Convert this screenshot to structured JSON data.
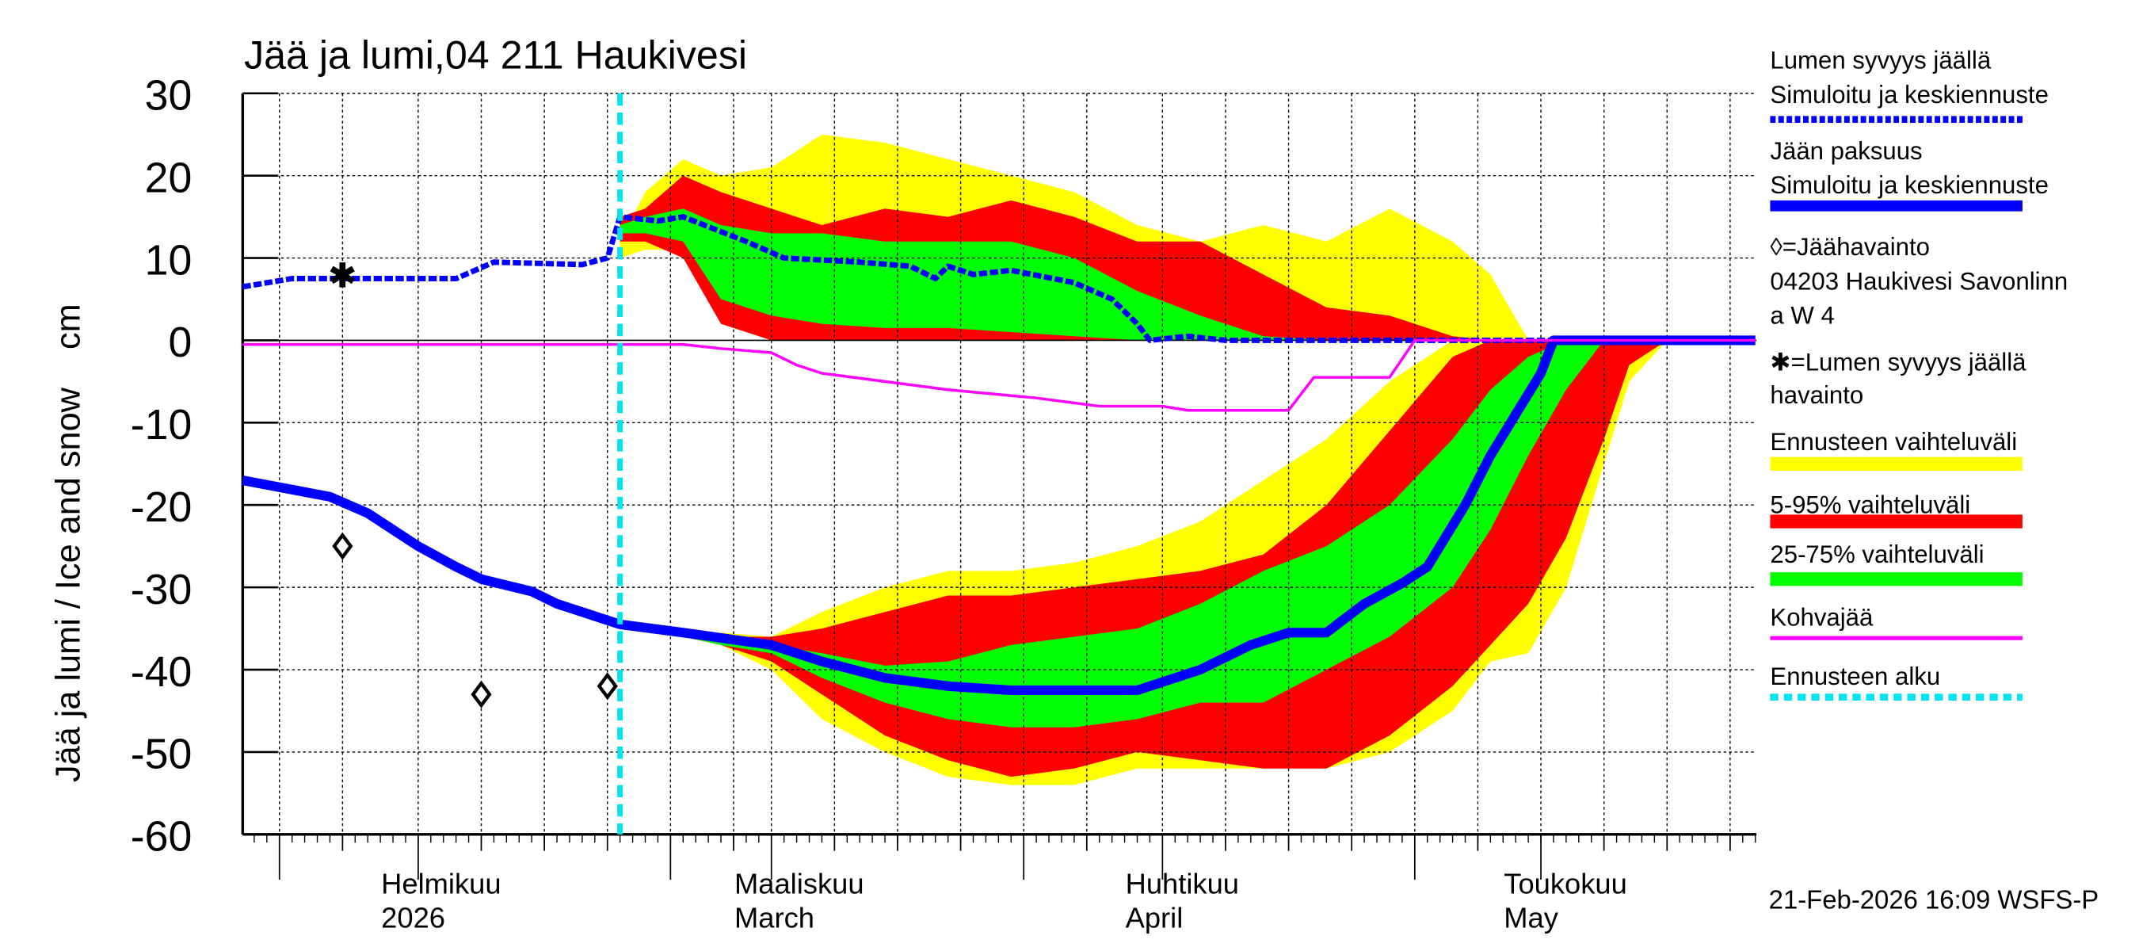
{
  "chart_data": {
    "type": "area",
    "title": "Jää ja lumi,04 211 Haukivesi",
    "ylabel": "Jää ja lumi / Ice and snow    cm",
    "ylim": [
      -60,
      30
    ],
    "yticks": [
      30,
      20,
      10,
      0,
      -10,
      -20,
      -30,
      -40,
      -50,
      -60
    ],
    "xlim": [
      "2026-01-18",
      "2026-05-18"
    ],
    "grid": true,
    "legend_placement": "right",
    "x_month_labels": [
      {
        "date": "2026-02-01",
        "fi": "Helmikuu",
        "en": "2026"
      },
      {
        "date": "2026-03-01",
        "fi": "Maaliskuu",
        "en": "March"
      },
      {
        "date": "2026-04-01",
        "fi": "Huhtikuu",
        "en": "April"
      },
      {
        "date": "2026-05-01",
        "fi": "Toukokuu",
        "en": "May"
      }
    ],
    "forecast_start": "2026-02-17",
    "band_dates": [
      "2026-02-17",
      "2026-02-19",
      "2026-02-22",
      "2026-02-25",
      "2026-03-01",
      "2026-03-05",
      "2026-03-10",
      "2026-03-15",
      "2026-03-20",
      "2026-03-25",
      "2026-03-30",
      "2026-04-04",
      "2026-04-09",
      "2026-04-14",
      "2026-04-19",
      "2026-04-24",
      "2026-04-27",
      "2026-04-30",
      "2026-05-03",
      "2026-05-06",
      "2026-05-08",
      "2026-05-11"
    ],
    "snow_bands": {
      "yellow_max": [
        12,
        18,
        22,
        20,
        21,
        25,
        24,
        22,
        20,
        18,
        14,
        12,
        14,
        12,
        16,
        12,
        8,
        0,
        0,
        0,
        0,
        0
      ],
      "yellow_min": [
        10,
        11,
        11,
        2,
        0,
        0,
        0,
        0,
        0,
        0,
        0,
        0,
        0,
        0,
        0,
        0,
        0,
        0,
        0,
        0,
        0,
        0
      ],
      "red_max": [
        15,
        16,
        20,
        18,
        16,
        14,
        16,
        15,
        17,
        15,
        12,
        12,
        8,
        4,
        3,
        0.5,
        0,
        0,
        0,
        0,
        0,
        0
      ],
      "red_min": [
        12,
        12,
        10,
        2,
        0,
        0,
        0,
        0,
        0,
        0,
        0,
        0,
        0,
        0,
        0,
        0,
        0,
        0,
        0,
        0,
        0,
        0
      ],
      "green_max": [
        14,
        15,
        16,
        14,
        13,
        13,
        12,
        12,
        12,
        10,
        6,
        3,
        0.5,
        0,
        0,
        0,
        0,
        0,
        0,
        0,
        0,
        0
      ],
      "green_min": [
        13,
        13,
        12,
        5,
        3,
        2,
        1.5,
        1.5,
        1,
        0.5,
        0,
        0,
        0,
        0,
        0,
        0,
        0,
        0,
        0,
        0,
        0,
        0
      ]
    },
    "ice_bands": {
      "yellow_upper": [
        -34.5,
        -35,
        -35.5,
        -35.5,
        -36,
        -33,
        -30,
        -28,
        -28,
        -27,
        -25,
        -22,
        -17,
        -12,
        -5,
        0,
        0,
        0,
        0,
        0,
        0,
        0
      ],
      "yellow_lower": [
        -34.5,
        -35,
        -36,
        -37,
        -40,
        -46,
        -50,
        -53,
        -54,
        -54,
        -52,
        -52,
        -52,
        -52,
        -50,
        -45,
        -39,
        -38,
        -30,
        -15,
        -5,
        0
      ],
      "red_upper": [
        -34.5,
        -35,
        -35.5,
        -36,
        -36,
        -35,
        -33,
        -31,
        -31,
        -30,
        -29,
        -28,
        -26,
        -20,
        -11,
        -2,
        0,
        0,
        0,
        0,
        0,
        0
      ],
      "red_lower": [
        -34.5,
        -35,
        -36,
        -37,
        -39,
        -43,
        -48,
        -51,
        -53,
        -52,
        -50,
        -51,
        -52,
        -52,
        -48,
        -42,
        -37,
        -32,
        -24,
        -12,
        -3,
        0
      ],
      "green_upper": [
        -34.5,
        -35,
        -35.5,
        -36,
        -37,
        -38,
        -39.5,
        -39,
        -37,
        -36,
        -35,
        -32,
        -28,
        -25,
        -20,
        -12,
        -6,
        -2,
        0,
        0,
        0,
        0
      ],
      "green_lower": [
        -34.5,
        -35,
        -36,
        -37,
        -38,
        -41,
        -44,
        -46,
        -47,
        -47,
        -46,
        -44,
        -44,
        -40,
        -36,
        -30,
        -23,
        -14,
        -6,
        0,
        0,
        0
      ]
    },
    "series": [
      {
        "name": "Lumen syvyys jäällä Simuloitu ja keskiennuste",
        "color": "#0000ff",
        "style": "dashed",
        "x": [
          "2026-01-18",
          "2026-01-22",
          "2026-02-01",
          "2026-02-04",
          "2026-02-07",
          "2026-02-14",
          "2026-02-16",
          "2026-02-17",
          "2026-02-20",
          "2026-02-22",
          "2026-02-27",
          "2026-03-02",
          "2026-03-08",
          "2026-03-12",
          "2026-03-14",
          "2026-03-15",
          "2026-03-17",
          "2026-03-20",
          "2026-03-25",
          "2026-03-28",
          "2026-03-30",
          "2026-03-31",
          "2026-04-03",
          "2026-04-06",
          "2026-05-18"
        ],
        "y": [
          6.5,
          7.5,
          7.5,
          7.5,
          9.5,
          9.2,
          10,
          15,
          14.5,
          15,
          12,
          10,
          9.5,
          9,
          7.5,
          9,
          8,
          8.5,
          7,
          5,
          2,
          0,
          0.5,
          0,
          0
        ]
      },
      {
        "name": "Jään paksuus Simuloitu ja keskiennuste",
        "color": "#0000ff",
        "style": "solid",
        "x": [
          "2026-01-18",
          "2026-01-25",
          "2026-01-28",
          "2026-02-01",
          "2026-02-04",
          "2026-02-06",
          "2026-02-10",
          "2026-02-12",
          "2026-02-14",
          "2026-02-17",
          "2026-02-22",
          "2026-03-01",
          "2026-03-05",
          "2026-03-10",
          "2026-03-15",
          "2026-03-20",
          "2026-03-25",
          "2026-03-30",
          "2026-04-01",
          "2026-04-04",
          "2026-04-08",
          "2026-04-11",
          "2026-04-14",
          "2026-04-17",
          "2026-04-20",
          "2026-04-22",
          "2026-04-25",
          "2026-04-27",
          "2026-04-29",
          "2026-05-01",
          "2026-05-02",
          "2026-05-18"
        ],
        "y": [
          -17,
          -19,
          -21,
          -25,
          -27.5,
          -29,
          -30.5,
          -32,
          -33,
          -34.5,
          -35.5,
          -37,
          -39,
          -41,
          -42,
          -42.5,
          -42.5,
          -42.5,
          -41.5,
          -40,
          -37,
          -35.5,
          -35.5,
          -32,
          -29.5,
          -27.5,
          -20,
          -14,
          -9,
          -4,
          0,
          0
        ]
      },
      {
        "name": "Kohvajää",
        "color": "#ff00ff",
        "style": "solid",
        "x": [
          "2026-01-18",
          "2026-02-22",
          "2026-02-25",
          "2026-03-01",
          "2026-03-03",
          "2026-03-05",
          "2026-03-10",
          "2026-03-15",
          "2026-03-22",
          "2026-03-27",
          "2026-04-01",
          "2026-04-03",
          "2026-04-11",
          "2026-04-13",
          "2026-04-19",
          "2026-04-21",
          "2026-05-18"
        ],
        "y": [
          -0.5,
          -0.5,
          -1,
          -1.5,
          -3,
          -4,
          -5,
          -6,
          -7,
          -8,
          -8,
          -8.5,
          -8.5,
          -4.5,
          -4.5,
          0,
          0
        ]
      }
    ],
    "observations": {
      "ice": [
        {
          "date": "2026-01-26",
          "value": -25
        },
        {
          "date": "2026-02-06",
          "value": -43
        },
        {
          "date": "2026-02-16",
          "value": -42
        }
      ],
      "snow": [
        {
          "date": "2026-01-26",
          "value": 8
        }
      ]
    },
    "colors": {
      "yellow": "#ffff00",
      "red": "#ff0000",
      "green": "#00ff00",
      "blue": "#0000ff",
      "magenta": "#ff00ff",
      "forecast_line": "#00e5ee"
    }
  },
  "legend": [
    {
      "lines": [
        "Lumen syvyys jäällä",
        "Simuloitu ja keskiennuste"
      ],
      "swatch": "dashed-blue"
    },
    {
      "lines": [
        "Jään paksuus",
        "Simuloitu ja keskiennuste"
      ],
      "swatch": "solid-blue"
    },
    {
      "lines": [
        "◊=Jäähavainto",
        "04203 Haukivesi Savonlinn",
        "a W 4"
      ],
      "swatch": "none"
    },
    {
      "lines": [
        "✱=Lumen syvyys jäällä",
        "havainto"
      ],
      "swatch": "none"
    },
    {
      "lines": [
        "Ennusteen vaihteluväli"
      ],
      "swatch": "yellow"
    },
    {
      "lines": [
        "5-95% vaihteluväli"
      ],
      "swatch": "red"
    },
    {
      "lines": [
        "25-75% vaihteluväli"
      ],
      "swatch": "green"
    },
    {
      "lines": [
        "Kohvajää"
      ],
      "swatch": "magenta"
    },
    {
      "lines": [
        "Ennusteen alku"
      ],
      "swatch": "dashed-cyan"
    }
  ],
  "footer": "21-Feb-2026 16:09 WSFS-P"
}
